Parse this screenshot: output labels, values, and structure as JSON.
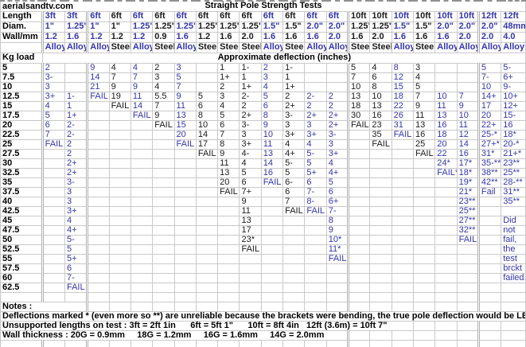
{
  "site": "aerialsandtv.com",
  "title": "Straight Pole Strength Tests",
  "header_labels": {
    "length": "Length",
    "diam": "Diam.",
    "wall": "Wall/mm",
    "kg": "Kg load"
  },
  "deflection_header": "Approximate deflection (inches)",
  "columns": [
    {
      "length": "3ft",
      "diam": "1\"",
      "wall": "1.2",
      "material": "Alloy"
    },
    {
      "length": "3ft",
      "diam": "1.25\"",
      "wall": "1.6",
      "material": "Alloy"
    },
    {
      "length": "6ft",
      "diam": "1\"",
      "wall": "1.2",
      "material": "Alloy"
    },
    {
      "length": "6ft",
      "diam": "1\"",
      "wall": "1.2",
      "material": "Steel"
    },
    {
      "length": "6ft",
      "diam": "1.25\"",
      "wall": "1.2",
      "material": "Alloy"
    },
    {
      "length": "6ft",
      "diam": "1.25\"",
      "wall": "0.9",
      "material": "Steel"
    },
    {
      "length": "6ft",
      "diam": "1.25\"",
      "wall": "1.6",
      "material": "Alloy"
    },
    {
      "length": "6ft",
      "diam": "1.25\"",
      "wall": "1.2",
      "material": "Steel"
    },
    {
      "length": "6ft",
      "diam": "1.25\"",
      "wall": "1.6",
      "material": "Steel"
    },
    {
      "length": "6ft",
      "diam": "1.25\"",
      "wall": "2.0",
      "material": "Steel"
    },
    {
      "length": "6ft",
      "diam": "1.5\"",
      "wall": "1.6",
      "material": "Alloy"
    },
    {
      "length": "6ft",
      "diam": "1.5\"",
      "wall": "1.6",
      "material": "Steel"
    },
    {
      "length": "6ft",
      "diam": "2.0\"",
      "wall": "1.6",
      "material": "Alloy"
    },
    {
      "length": "6ft",
      "diam": "2.0\"",
      "wall": "2.0",
      "material": "Alloy"
    },
    {
      "length": "10ft",
      "diam": "1.25\"",
      "wall": "1.6",
      "material": "Steel"
    },
    {
      "length": "10ft",
      "diam": "1.25\"",
      "wall": "2.0",
      "material": "Steel"
    },
    {
      "length": "10ft",
      "diam": "1.5\"",
      "wall": "1.6",
      "material": "Alloy"
    },
    {
      "length": "10ft",
      "diam": "1.5\"",
      "wall": "1.6",
      "material": "Steel"
    },
    {
      "length": "10ft",
      "diam": "2.0\"",
      "wall": "1.6",
      "material": "Alloy"
    },
    {
      "length": "10ft",
      "diam": "2.0\"",
      "wall": "2.0",
      "material": "Alloy"
    },
    {
      "length": "12ft",
      "diam": "2.0\"",
      "wall": "2.0",
      "material": "Alloy"
    },
    {
      "length": "12ft",
      "diam": "48mm",
      "wall": "4.0",
      "material": "Alloy"
    }
  ],
  "loads": [
    "5",
    "7.5",
    "10",
    "12.5",
    "15",
    "17.5",
    "20",
    "22.5",
    "25",
    "27.5",
    "30",
    "32.5",
    "35",
    "37.5",
    "40",
    "42.5",
    "45",
    "47.5",
    "50",
    "52.5",
    "55",
    "57.5",
    "60",
    "62.5"
  ],
  "rows": [
    [
      "2",
      "",
      "9",
      "4",
      "4",
      "2",
      "3",
      "",
      "1",
      "1-",
      "2",
      "1-",
      "",
      "",
      "5",
      "4",
      "8",
      "3",
      "",
      "",
      "5",
      "5-"
    ],
    [
      "3-",
      "",
      "14",
      "7",
      "7",
      "3",
      "5",
      "",
      "1+",
      "1",
      "3",
      "1",
      "",
      "",
      "7",
      "6",
      "12",
      "4",
      "",
      "",
      "7-",
      "6+"
    ],
    [
      "3",
      "",
      "21",
      "9",
      "9",
      "4",
      "7",
      "",
      "2",
      "1+",
      "4",
      "1+",
      "",
      "",
      "10",
      "8",
      "15",
      "5",
      "",
      "",
      "10",
      "9-"
    ],
    [
      "3+",
      "1-",
      "FAIL",
      "19",
      "11",
      "5.5",
      "9",
      "5",
      "3",
      "2-",
      "5",
      "2",
      "2-",
      "2",
      "13",
      "10",
      "18",
      "7",
      "10",
      "7",
      "14+",
      "10+"
    ],
    [
      "4",
      "1",
      "",
      "FAIL",
      "14",
      "7",
      "11",
      "6",
      "4",
      "2",
      "6",
      "2+",
      "2",
      "2",
      "18",
      "13",
      "22",
      "9",
      "11",
      "9",
      "17",
      "12+"
    ],
    [
      "5",
      "1+",
      "",
      "",
      "FAIL",
      "9",
      "13",
      "8",
      "5",
      "2+",
      "8",
      "3-",
      "2+",
      "2+",
      "30",
      "16",
      "26",
      "11",
      "13",
      "10",
      "20",
      "15-"
    ],
    [
      "6",
      "2-",
      "",
      "",
      "",
      "FAIL",
      "15",
      "10",
      "6",
      "3-",
      "9",
      "3",
      "3",
      "2+",
      "FAIL",
      "23",
      "31",
      "13",
      "16",
      "11",
      "22+",
      "16"
    ],
    [
      "7",
      "2-",
      "",
      "",
      "",
      "",
      "20",
      "14",
      "7",
      "3",
      "10",
      "3+",
      "3+",
      "3-",
      "",
      "35",
      "FAIL",
      "16",
      "18",
      "12",
      "25-*",
      "18*"
    ],
    [
      "FAIL",
      "2",
      "",
      "",
      "",
      "",
      "FAIL",
      "17",
      "8",
      "3+",
      "11",
      "4",
      "4",
      "3",
      "",
      "FAIL",
      "",
      "25",
      "20",
      "14",
      "27+*",
      "20-*"
    ],
    [
      "",
      "2",
      "",
      "",
      "",
      "",
      "",
      "FAIL",
      "9",
      "4-",
      "13",
      "4+",
      "5-",
      "3+",
      "",
      "",
      "",
      "FAIL",
      "22",
      "16",
      "31*",
      "21+*"
    ],
    [
      "",
      "2+",
      "",
      "",
      "",
      "",
      "",
      "",
      "11",
      "4",
      "14",
      "5-",
      "5",
      "4",
      "",
      "",
      "",
      "",
      "24*",
      "17*",
      "35-**",
      "23**"
    ],
    [
      "",
      "2+",
      "",
      "",
      "",
      "",
      "",
      "",
      "13",
      "5",
      "16",
      "5",
      "5+",
      "4+",
      "",
      "",
      "",
      "",
      "FAIL*",
      "18*",
      "38**",
      "25**"
    ],
    [
      "",
      "3-",
      "",
      "",
      "",
      "",
      "",
      "",
      "20",
      "6",
      "FAIL",
      "6-",
      "6",
      "5",
      "",
      "",
      "",
      "",
      "",
      "19*",
      "42**",
      "28-**"
    ],
    [
      "",
      "3",
      "",
      "",
      "",
      "",
      "",
      "",
      "FAIL",
      "7+",
      "",
      "6",
      "7-",
      "6",
      "",
      "",
      "",
      "",
      "",
      "21*",
      "Fail",
      "31**"
    ],
    [
      "",
      "3",
      "",
      "",
      "",
      "",
      "",
      "",
      "",
      "9",
      "",
      "7",
      "8-",
      "6+",
      "",
      "",
      "",
      "",
      "",
      "23**",
      "",
      "35**"
    ],
    [
      "",
      "3+",
      "",
      "",
      "",
      "",
      "",
      "",
      "",
      "11",
      "",
      "FAIL",
      "FAIL",
      "7-",
      "",
      "",
      "",
      "",
      "",
      "25**",
      "",
      ""
    ],
    [
      "",
      "4",
      "",
      "",
      "",
      "",
      "",
      "",
      "",
      "13",
      "",
      "",
      "",
      "8",
      "",
      "",
      "",
      "",
      "",
      "27**",
      "",
      "Did"
    ],
    [
      "",
      "4+",
      "",
      "",
      "",
      "",
      "",
      "",
      "",
      "17",
      "",
      "",
      "",
      "9",
      "",
      "",
      "",
      "",
      "",
      "32**",
      "",
      "not"
    ],
    [
      "",
      "5-",
      "",
      "",
      "",
      "",
      "",
      "",
      "",
      "23*",
      "",
      "",
      "",
      "10*",
      "",
      "",
      "",
      "",
      "",
      "FAIL",
      "",
      "fail,"
    ],
    [
      "",
      "5",
      "",
      "",
      "",
      "",
      "",
      "",
      "",
      "FAIL",
      "",
      "",
      "",
      "11*",
      "",
      "",
      "",
      "",
      "",
      "",
      "",
      "the"
    ],
    [
      "",
      "5+",
      "",
      "",
      "",
      "",
      "",
      "",
      "",
      "",
      "",
      "",
      "",
      "FAIL",
      "",
      "",
      "",
      "",
      "",
      "",
      "",
      "test"
    ],
    [
      "",
      "6",
      "",
      "",
      "",
      "",
      "",
      "",
      "",
      "",
      "",
      "",
      "",
      "",
      "",
      "",
      "",
      "",
      "",
      "",
      "",
      "brckt"
    ],
    [
      "",
      "7-",
      "",
      "",
      "",
      "",
      "",
      "",
      "",
      "",
      "",
      "",
      "",
      "",
      "",
      "",
      "",
      "",
      "",
      "",
      "",
      "failed."
    ],
    [
      "",
      "FAIL",
      "",
      "",
      "",
      "",
      "",
      "",
      "",
      "",
      "",
      "",
      "",
      "",
      "",
      "",
      "",
      "",
      "",
      "",
      "",
      ""
    ]
  ],
  "notes": {
    "label": "Notes :",
    "bending": "Deflections marked * (even more so **) are unreliable because the brackets were bending, the true pole deflection would be LESS.",
    "lengths": "Unsupported lengths on test : 3ft = 2ft 1in      6ft = 5ft 1\"      10ft = 8ft 4in   12ft (3.6m) = 10ft 7\"",
    "wall": "Wall thickness : 20G = 0.9mm     18G = 1.2mm     16G = 1.6mm     14G = 2.0mm"
  },
  "colors": {
    "alloy_text": "#3535a8",
    "steel_text": "#1a1a1a",
    "grid_line": "#c9c9c9",
    "group_separator": "#b0b0b0",
    "background": "#ffffff"
  }
}
